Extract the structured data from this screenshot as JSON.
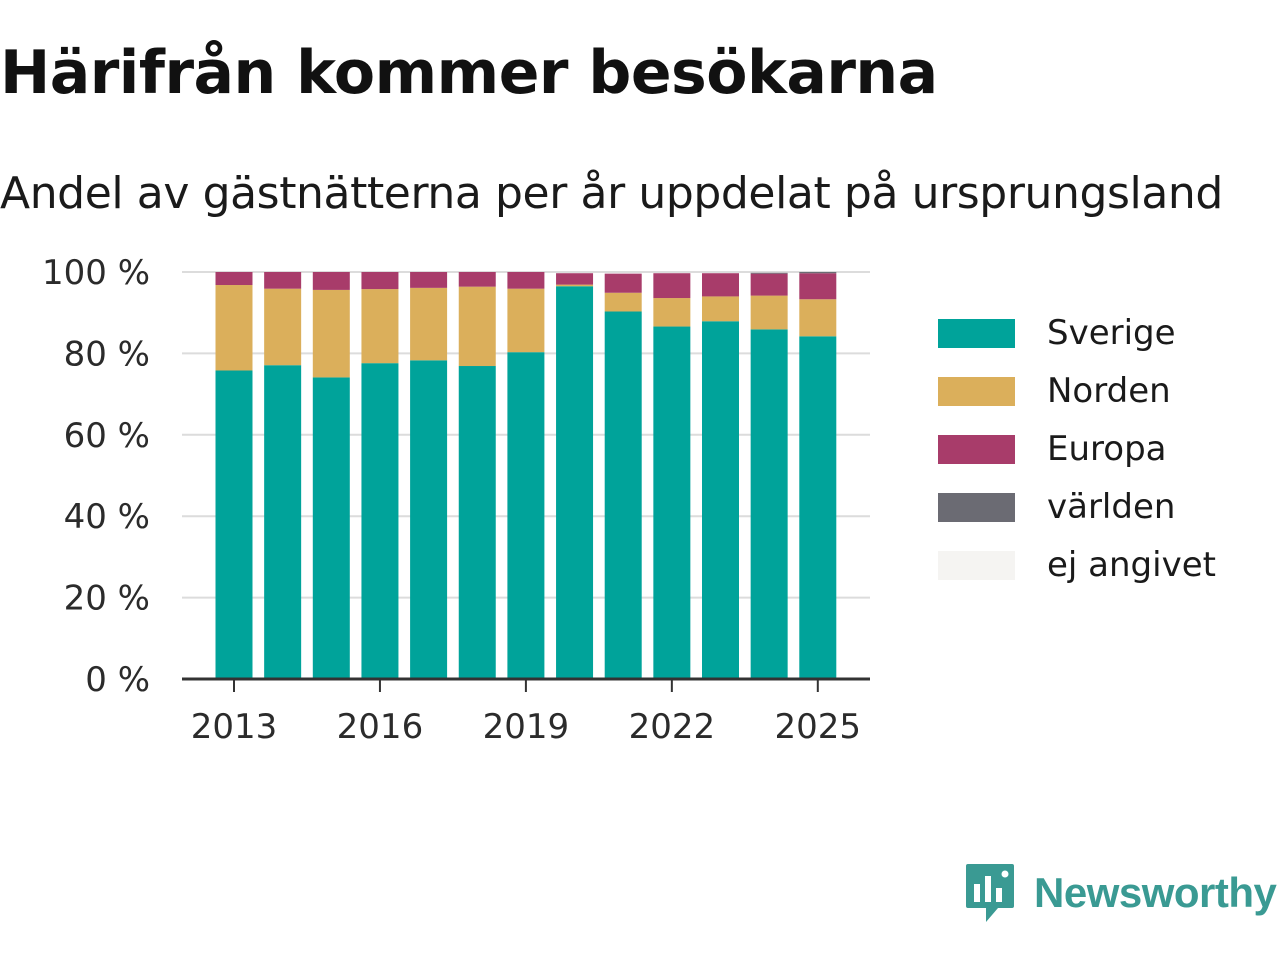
{
  "title": "Härifrån kommer besökarna",
  "subtitle": "Andel av gästnätterna per år uppdelat på ursprungsland",
  "brand": {
    "name": "Newsworthy",
    "color": "#3a9a93"
  },
  "chart_data": {
    "type": "bar",
    "stacked": true,
    "categories": [
      "2013",
      "2014",
      "2015",
      "2016",
      "2017",
      "2018",
      "2019",
      "2020",
      "2021",
      "2022",
      "2023",
      "2024",
      "2025"
    ],
    "x_tick_labels": [
      "2013",
      "2016",
      "2019",
      "2022",
      "2025"
    ],
    "y_tick_labels": [
      "0 %",
      "20 %",
      "40 %",
      "60 %",
      "80 %",
      "100 %"
    ],
    "ylim": [
      0,
      100
    ],
    "ytick_values": [
      0,
      20,
      40,
      60,
      80,
      100
    ],
    "grid": "horizontal",
    "legend_position": "right",
    "series": [
      {
        "name": "Sverige",
        "color": "#00a39a",
        "values": [
          75.8,
          77.1,
          74.1,
          77.6,
          78.3,
          76.9,
          80.3,
          96.5,
          90.3,
          86.6,
          87.9,
          85.9,
          84.2
        ]
      },
      {
        "name": "Norden",
        "color": "#dbaf5b",
        "values": [
          21.0,
          18.8,
          21.5,
          18.2,
          17.8,
          19.5,
          15.6,
          0.4,
          4.6,
          7.0,
          6.1,
          8.3,
          9.1
        ]
      },
      {
        "name": "Europa",
        "color": "#a83c6a",
        "values": [
          3.2,
          4.1,
          4.4,
          4.2,
          3.9,
          3.6,
          4.1,
          2.8,
          4.7,
          6.1,
          5.7,
          5.4,
          6.4
        ]
      },
      {
        "name": "världen",
        "color": "#6b6b73",
        "values": [
          0,
          0,
          0,
          0,
          0,
          0,
          0,
          0,
          0,
          0,
          0,
          0.2,
          0.3
        ]
      },
      {
        "name": "ej angivet",
        "color": "#f5f4f2",
        "values": [
          0,
          0,
          0,
          0,
          0,
          0,
          0,
          0,
          0,
          0,
          0,
          0,
          0
        ]
      }
    ]
  }
}
